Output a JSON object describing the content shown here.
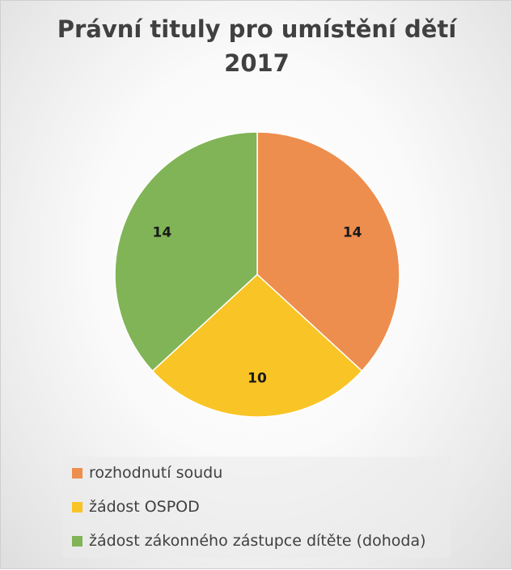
{
  "chart_data": {
    "type": "pie",
    "title_lines": [
      "Právní tituly pro umístění dětí",
      "2017"
    ],
    "categories": [
      "rozhodnutí soudu",
      "žádost OSPOD",
      "žádost zákonného zástupce dítěte (dohoda)"
    ],
    "values": [
      14,
      10,
      14
    ],
    "data_labels": [
      "14",
      "10",
      "14"
    ],
    "colors": [
      "#ED8E4F",
      "#F9C425",
      "#80B456"
    ],
    "legend_position": "bottom"
  }
}
